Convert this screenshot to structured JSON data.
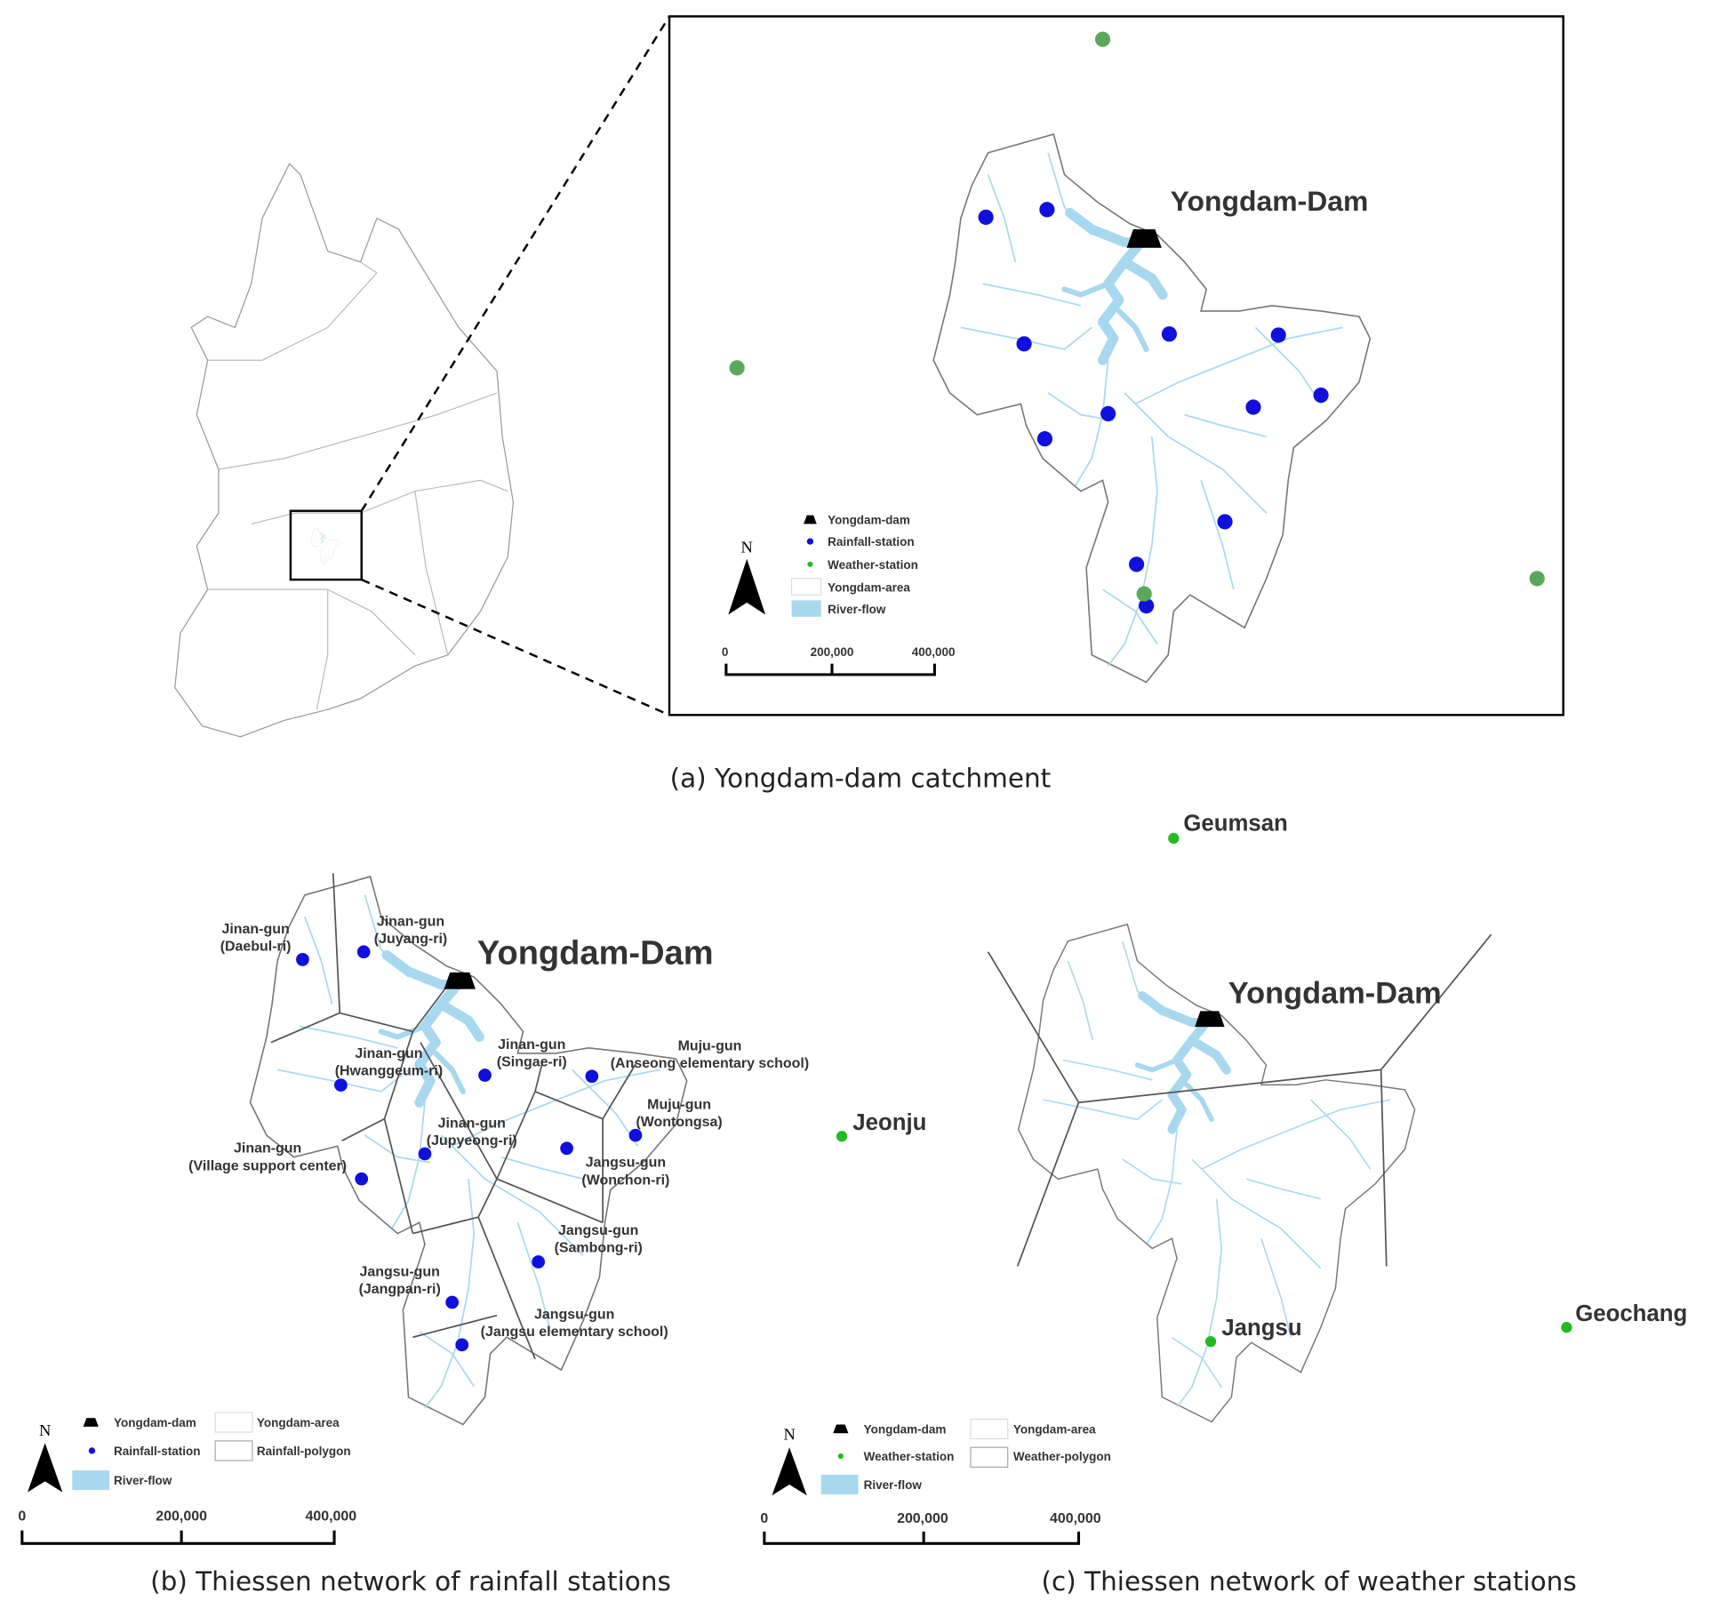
{
  "colors": {
    "rainfall_station": "#1010dd",
    "weather_station": "#5aa85a",
    "weather_station_c": "#22bb22",
    "river": "#a8d8f0",
    "polygon": "#555555"
  },
  "panel_a": {
    "caption": "(a) Yongdam-dam catchment",
    "dam_label": "Yongdam-Dam",
    "legend": {
      "dam": "Yongdam-dam",
      "rainfall": "Rainfall-station",
      "weather": "Weather-station",
      "area": "Yongdam-area",
      "river": "River-flow"
    },
    "north": "N",
    "scale": [
      "0",
      "200,000",
      "400,000"
    ]
  },
  "panel_b": {
    "caption": "(b) Thiessen network of rainfall stations",
    "dam_label": "Yongdam-Dam",
    "stations": [
      {
        "l1": "Jinan-gun",
        "l2": "(Daebul-ri)"
      },
      {
        "l1": "Jinan-gun",
        "l2": "(Juyang-ri)"
      },
      {
        "l1": "Jinan-gun",
        "l2": "(Hwanggeum-ri)"
      },
      {
        "l1": "Jinan-gun",
        "l2": "(Singae-ri)"
      },
      {
        "l1": "Muju-gun",
        "l2": "(Anseong elementary school)"
      },
      {
        "l1": "Muju-gun",
        "l2": "(Wontongsa)"
      },
      {
        "l1": "Jinan-gun",
        "l2": "(Jupyeong-ri)"
      },
      {
        "l1": "Jinan-gun",
        "l2": "(Village support center)"
      },
      {
        "l1": "Jangsu-gun",
        "l2": "(Wonchon-ri)"
      },
      {
        "l1": "Jangsu-gun",
        "l2": "(Sambong-ri)"
      },
      {
        "l1": "Jangsu-gun",
        "l2": "(Jangpan-ri)"
      },
      {
        "l1": "Jangsu-gun",
        "l2": "(Jangsu elementary school)"
      }
    ],
    "legend": {
      "dam": "Yongdam-dam",
      "area": "Yongdam-area",
      "rainfall": "Rainfall-station",
      "polygon": "Rainfall-polygon",
      "river": "River-flow"
    },
    "north": "N",
    "scale": [
      "0",
      "200,000",
      "400,000"
    ]
  },
  "panel_c": {
    "caption": "(c) Thiessen network of weather stations",
    "dam_label": "Yongdam-Dam",
    "stations": [
      "Geumsan",
      "Jeonju",
      "Jangsu",
      "Geochang"
    ],
    "legend": {
      "dam": "Yongdam-dam",
      "area": "Yongdam-area",
      "weather": "Weather-station",
      "polygon": "Weather-polygon",
      "river": "River-flow"
    },
    "north": "N",
    "scale": [
      "0",
      "200,000",
      "400,000"
    ]
  }
}
